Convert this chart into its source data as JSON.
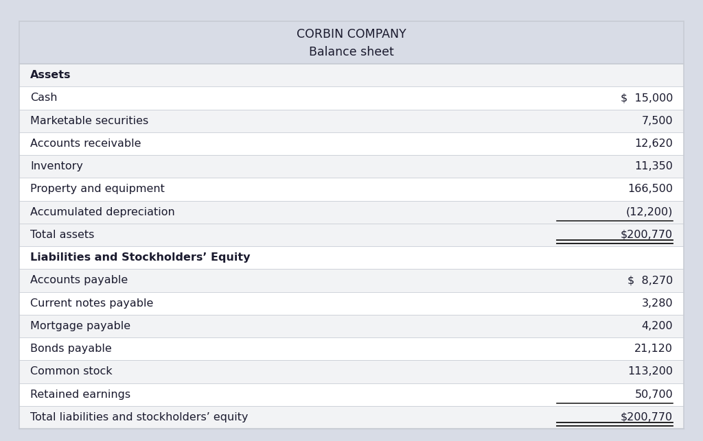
{
  "title_line1": "CORBIN COMPANY",
  "title_line2": "Balance sheet",
  "fig_bg": "#d8dce6",
  "header_bg": "#d8dce6",
  "row_bg_light": "#f2f3f5",
  "row_bg_white": "#ffffff",
  "total_bg": "#f2f3f5",
  "border_color": "#c8ccd4",
  "text_color": "#1a1a2e",
  "font_size": 11.5,
  "header_fontsize": 12.5,
  "rows": [
    {
      "label": "Assets",
      "value": "",
      "bold": true,
      "bg": "#f2f3f5",
      "underline": false,
      "double_underline": false
    },
    {
      "label": "Cash",
      "value": "$  15,000",
      "bold": false,
      "bg": "#ffffff",
      "underline": false,
      "double_underline": false
    },
    {
      "label": "Marketable securities",
      "value": "7,500",
      "bold": false,
      "bg": "#f2f3f5",
      "underline": false,
      "double_underline": false
    },
    {
      "label": "Accounts receivable",
      "value": "12,620",
      "bold": false,
      "bg": "#ffffff",
      "underline": false,
      "double_underline": false
    },
    {
      "label": "Inventory",
      "value": "11,350",
      "bold": false,
      "bg": "#f2f3f5",
      "underline": false,
      "double_underline": false
    },
    {
      "label": "Property and equipment",
      "value": "166,500",
      "bold": false,
      "bg": "#ffffff",
      "underline": false,
      "double_underline": false
    },
    {
      "label": "Accumulated depreciation",
      "value": "(12,200)",
      "bold": false,
      "bg": "#f2f3f5",
      "underline": true,
      "double_underline": false
    },
    {
      "label": "Total assets",
      "value": "$200,770",
      "bold": false,
      "bg": "#f2f3f5",
      "underline": false,
      "double_underline": true
    },
    {
      "label": "Liabilities and Stockholders’ Equity",
      "value": "",
      "bold": true,
      "bg": "#ffffff",
      "underline": false,
      "double_underline": false
    },
    {
      "label": "Accounts payable",
      "value": "$  8,270",
      "bold": false,
      "bg": "#f2f3f5",
      "underline": false,
      "double_underline": false
    },
    {
      "label": "Current notes payable",
      "value": "3,280",
      "bold": false,
      "bg": "#ffffff",
      "underline": false,
      "double_underline": false
    },
    {
      "label": "Mortgage payable",
      "value": "4,200",
      "bold": false,
      "bg": "#f2f3f5",
      "underline": false,
      "double_underline": false
    },
    {
      "label": "Bonds payable",
      "value": "21,120",
      "bold": false,
      "bg": "#ffffff",
      "underline": false,
      "double_underline": false
    },
    {
      "label": "Common stock",
      "value": "113,200",
      "bold": false,
      "bg": "#f2f3f5",
      "underline": false,
      "double_underline": false
    },
    {
      "label": "Retained earnings",
      "value": "50,700",
      "bold": false,
      "bg": "#ffffff",
      "underline": true,
      "double_underline": false
    },
    {
      "label": "Total liabilities and stockholders’ equity",
      "value": "$200,770",
      "bold": false,
      "bg": "#f2f3f5",
      "underline": false,
      "double_underline": true
    }
  ]
}
